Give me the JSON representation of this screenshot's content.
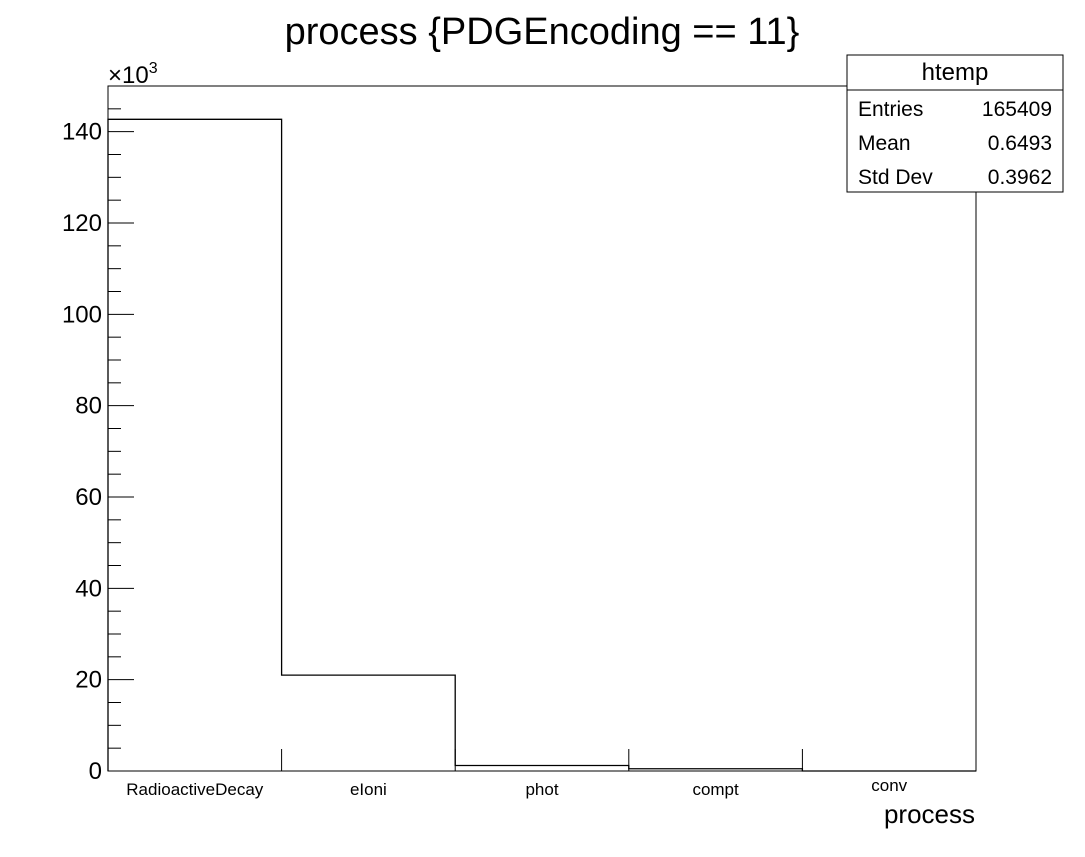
{
  "chart_data": {
    "type": "bar",
    "histogram_style": "step",
    "title": "process {PDGEncoding == 11}",
    "xlabel": "process",
    "ylabel": "",
    "y_multiplier_label": "×10³",
    "y_multiplier_base": "×10",
    "y_multiplier_exp": "3",
    "categories": [
      "RadioactiveDecay",
      "eIoni",
      "phot",
      "compt",
      "conv"
    ],
    "values": [
      142.7,
      21.0,
      1.2,
      0.5,
      0.0
    ],
    "ylim": [
      0,
      150
    ],
    "yticks": [
      0,
      20,
      40,
      60,
      80,
      100,
      120,
      140
    ],
    "ytick_labels": [
      "0",
      "20",
      "40",
      "60",
      "80",
      "100",
      "120",
      "140"
    ],
    "grid": false,
    "line_color": "#000000",
    "stats_box": {
      "title": "htemp",
      "placement": "top-right",
      "rows": [
        {
          "label": "Entries",
          "value": "165409"
        },
        {
          "label": "Mean",
          "value": "0.6493"
        },
        {
          "label": "Std Dev",
          "value": "0.3962"
        }
      ]
    }
  }
}
